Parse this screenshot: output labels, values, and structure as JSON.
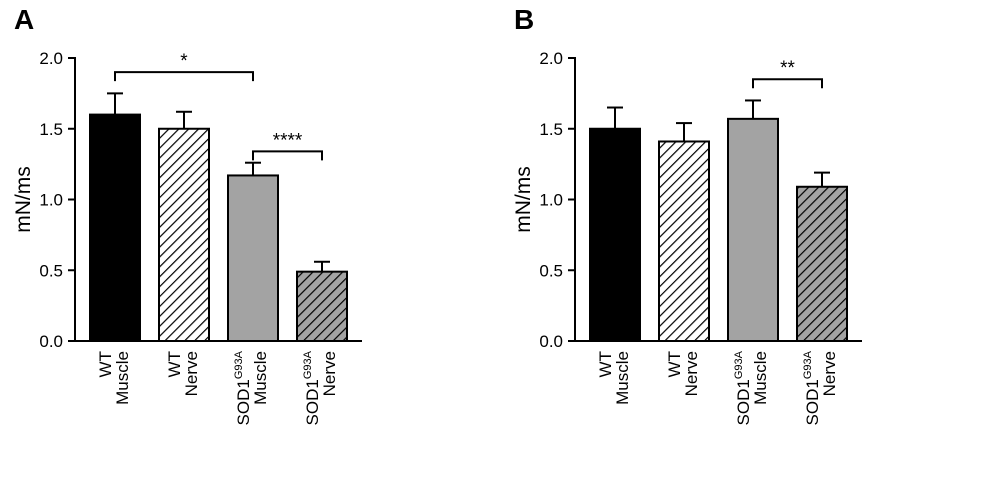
{
  "background": "#ffffff",
  "colors": {
    "bar_black": "#000000",
    "bar_gray": "#a3a3a3",
    "hatch_bg_white": "#ffffff",
    "hatch_line": "#000000",
    "axis": "#000000",
    "text": "#000000"
  },
  "chart_data": [
    {
      "type": "bar",
      "panel_label": "A",
      "title": "",
      "xlabel": "",
      "ylabel": "mN/ms",
      "ylim": [
        0,
        2.0
      ],
      "yticks": [
        0.0,
        0.5,
        1.0,
        1.5,
        2.0
      ],
      "grid": false,
      "categories": [
        {
          "gene": "WT",
          "sup": "",
          "tissue": "Muscle"
        },
        {
          "gene": "WT",
          "sup": "",
          "tissue": "Nerve"
        },
        {
          "gene": "SOD1",
          "sup": "G93A",
          "tissue": "Muscle"
        },
        {
          "gene": "SOD1",
          "sup": "G93A",
          "tissue": "Nerve"
        }
      ],
      "values": [
        1.6,
        1.5,
        1.17,
        0.49
      ],
      "errors": [
        0.15,
        0.12,
        0.09,
        0.07
      ],
      "bar_styles": [
        "solid-black",
        "hatch-white",
        "solid-gray",
        "hatch-gray"
      ],
      "significance": [
        {
          "from": 0,
          "to": 2,
          "label": "*",
          "height": 1.9
        },
        {
          "from": 2,
          "to": 3,
          "label": "****",
          "height": 1.34
        }
      ]
    },
    {
      "type": "bar",
      "panel_label": "B",
      "title": "",
      "xlabel": "",
      "ylabel": "mN/ms",
      "ylim": [
        0,
        2.0
      ],
      "yticks": [
        0.0,
        0.5,
        1.0,
        1.5,
        2.0
      ],
      "grid": false,
      "categories": [
        {
          "gene": "WT",
          "sup": "",
          "tissue": "Muscle"
        },
        {
          "gene": "WT",
          "sup": "",
          "tissue": "Nerve"
        },
        {
          "gene": "SOD1",
          "sup": "G93A",
          "tissue": "Muscle"
        },
        {
          "gene": "SOD1",
          "sup": "G93A",
          "tissue": "Nerve"
        }
      ],
      "values": [
        1.5,
        1.41,
        1.57,
        1.09
      ],
      "errors": [
        0.15,
        0.13,
        0.13,
        0.1
      ],
      "bar_styles": [
        "solid-black",
        "hatch-white",
        "solid-gray",
        "hatch-gray"
      ],
      "significance": [
        {
          "from": 2,
          "to": 3,
          "label": "**",
          "height": 1.85
        }
      ]
    }
  ]
}
